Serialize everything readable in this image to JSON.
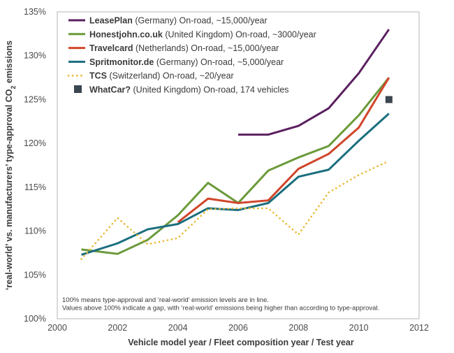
{
  "chart_data": {
    "type": "line",
    "xlabel": "Vehicle model year / Fleet composition year / Test year",
    "ylabel_parts": [
      "‘real-world’ vs. manufacturers’ type-approval CO",
      "2",
      " emissions"
    ],
    "xlim": [
      2000,
      2012
    ],
    "ylim": [
      100,
      135
    ],
    "x_ticks": [
      2000,
      2002,
      2004,
      2006,
      2008,
      2010,
      2012
    ],
    "y_ticks": [
      100,
      105,
      110,
      115,
      120,
      125,
      130,
      135
    ],
    "y_tick_suffix": "%",
    "series": [
      {
        "name_bold": "LeasePlan",
        "name_rest": " (Germany) On-road, ~15,000/year",
        "style": "solid",
        "color": "#5b2060",
        "x": [
          2006,
          2007,
          2008,
          2009,
          2010,
          2011
        ],
        "y": [
          121.0,
          121.0,
          122.0,
          124.0,
          128.0,
          133.0
        ]
      },
      {
        "name_bold": "Honestjohn.co.uk",
        "name_rest": " (United Kingdom) On-road, ~3000/year",
        "style": "solid",
        "color": "#6a9a3a",
        "x": [
          2000.8,
          2002,
          2003,
          2004,
          2005,
          2006,
          2007,
          2008,
          2009,
          2010,
          2011
        ],
        "y": [
          107.9,
          107.4,
          109.0,
          111.8,
          115.5,
          113.2,
          116.9,
          118.4,
          119.7,
          123.2,
          127.5
        ]
      },
      {
        "name_bold": "Travelcard",
        "name_rest": " (Netherlands) On-road, ~15,000/year",
        "style": "solid",
        "color": "#d0452b",
        "x": [
          2004,
          2005,
          2006,
          2007,
          2008,
          2009,
          2010,
          2011
        ],
        "y": [
          111.0,
          113.7,
          113.2,
          113.5,
          117.1,
          118.8,
          121.8,
          127.5
        ]
      },
      {
        "name_bold": "Spritmonitor.de",
        "name_rest": " (Germany) On-road, ~5,000/year",
        "style": "solid",
        "color": "#1a6e7e",
        "x": [
          2000.8,
          2002,
          2003,
          2004,
          2005,
          2006,
          2007,
          2008,
          2009,
          2010,
          2011
        ],
        "y": [
          107.3,
          108.6,
          110.2,
          110.8,
          112.6,
          112.4,
          113.2,
          116.2,
          117.0,
          120.3,
          123.4
        ]
      },
      {
        "name_bold": "TCS",
        "name_rest": " (Switzerland) On-road, ~20/year",
        "style": "dotted",
        "color": "#e8b830",
        "x": [
          2000.8,
          2002,
          2003,
          2004,
          2005,
          2006,
          2007,
          2008,
          2009,
          2010,
          2011
        ],
        "y": [
          106.8,
          111.5,
          108.5,
          109.2,
          112.5,
          112.6,
          112.6,
          109.6,
          114.4,
          116.4,
          118.0
        ]
      }
    ],
    "points": [
      {
        "name_bold": "WhatCar?",
        "name_rest": " (United Kingdom) On-road, 174 vehicles",
        "color": "#3c4650",
        "x": 2011,
        "y": 125.0
      }
    ],
    "notes": [
      "100% means type-approval and ‘real-world’ emission levels are in line.",
      "Values above 100% indicate a gap, with ‘real-world’ emissions being higher than according to type-approval."
    ]
  }
}
